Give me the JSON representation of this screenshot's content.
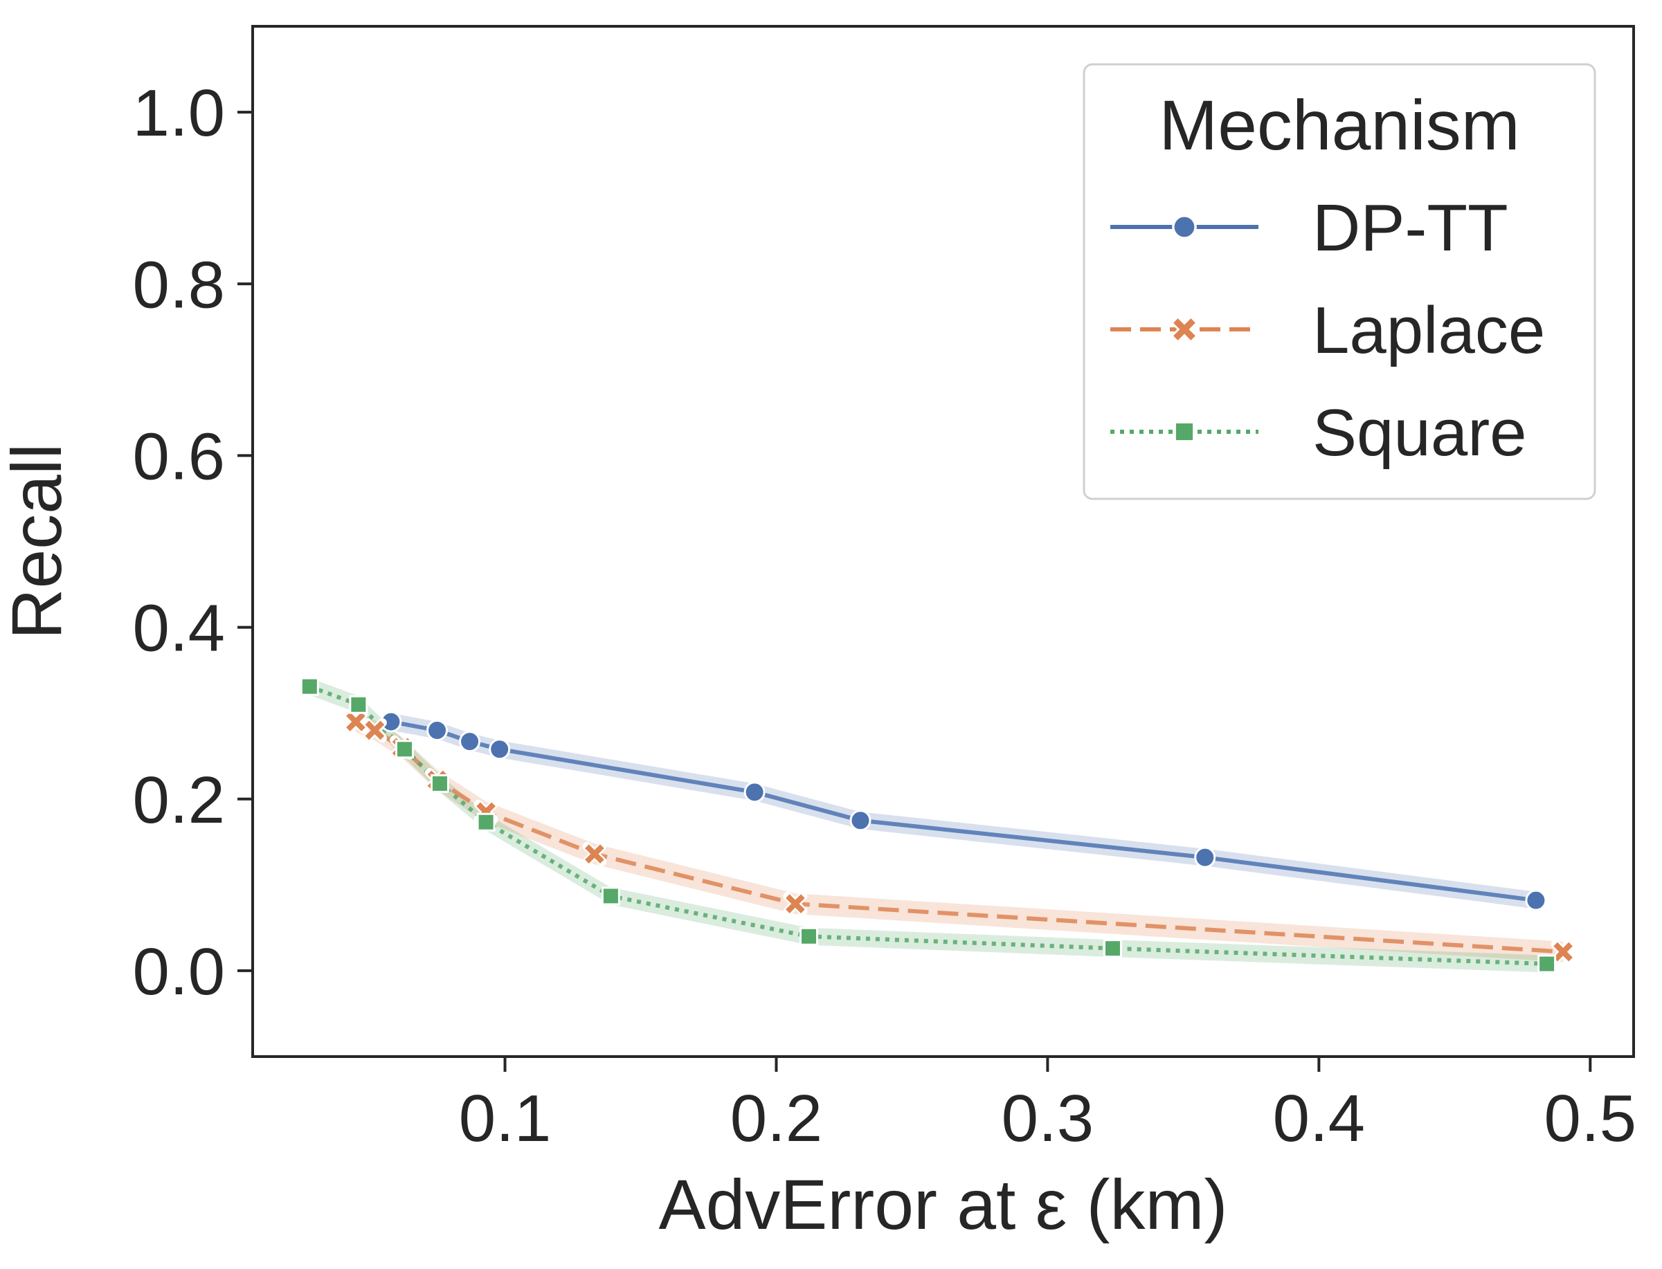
{
  "chart_data": {
    "type": "line",
    "xlabel": "AdvError at ε (km)",
    "ylabel": "Recall",
    "xlim": [
      0.007,
      0.516
    ],
    "ylim": [
      -0.1,
      1.1
    ],
    "xticks": [
      0.1,
      0.2,
      0.3,
      0.4,
      0.5
    ],
    "xtick_labels": [
      "0.1",
      "0.2",
      "0.3",
      "0.4",
      "0.5"
    ],
    "yticks": [
      0.0,
      0.2,
      0.4,
      0.6,
      0.8,
      1.0
    ],
    "ytick_labels": [
      "0.0",
      "0.2",
      "0.4",
      "0.6",
      "0.8",
      "1.0"
    ],
    "grid": false,
    "legend": {
      "title": "Mechanism",
      "placement": "top-right"
    },
    "series": [
      {
        "name": "DP-TT",
        "color": "#4c72b0",
        "linestyle": "solid",
        "marker": "circle",
        "x": [
          0.058,
          0.075,
          0.087,
          0.098,
          0.192,
          0.231,
          0.358,
          0.48
        ],
        "y": [
          0.29,
          0.28,
          0.267,
          0.258,
          0.208,
          0.175,
          0.132,
          0.082
        ],
        "band": 0.01
      },
      {
        "name": "Laplace",
        "color": "#dd8452",
        "linestyle": "dashed",
        "marker": "x",
        "x": [
          0.045,
          0.052,
          0.062,
          0.075,
          0.093,
          0.133,
          0.207,
          0.49
        ],
        "y": [
          0.29,
          0.28,
          0.26,
          0.222,
          0.185,
          0.136,
          0.078,
          0.022
        ],
        "band": 0.012
      },
      {
        "name": "Square",
        "color": "#55a868",
        "linestyle": "dotted",
        "marker": "square",
        "x": [
          0.028,
          0.046,
          0.063,
          0.076,
          0.093,
          0.139,
          0.212,
          0.324,
          0.484
        ],
        "y": [
          0.331,
          0.31,
          0.258,
          0.218,
          0.173,
          0.087,
          0.04,
          0.026,
          0.008
        ],
        "band": 0.01
      }
    ]
  }
}
